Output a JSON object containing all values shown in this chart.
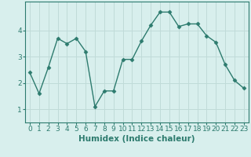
{
  "xlabel": "Humidex (Indice chaleur)",
  "x_values": [
    0,
    1,
    2,
    3,
    4,
    5,
    6,
    7,
    8,
    9,
    10,
    11,
    12,
    13,
    14,
    15,
    16,
    17,
    18,
    19,
    20,
    21,
    22,
    23
  ],
  "y_values": [
    2.4,
    1.6,
    2.6,
    3.7,
    3.5,
    3.7,
    3.2,
    1.1,
    1.7,
    1.7,
    2.9,
    2.9,
    3.6,
    4.2,
    4.7,
    4.7,
    4.15,
    4.25,
    4.25,
    3.8,
    3.55,
    2.7,
    2.1,
    1.8
  ],
  "line_color": "#2d7b6e",
  "marker": "D",
  "marker_size": 2.5,
  "bg_color": "#d8efed",
  "grid_color": "#c0dbd8",
  "ylim": [
    0.5,
    5.1
  ],
  "xlim": [
    -0.5,
    23.5
  ],
  "yticks": [
    1,
    2,
    3,
    4
  ],
  "xticks": [
    0,
    1,
    2,
    3,
    4,
    5,
    6,
    7,
    8,
    9,
    10,
    11,
    12,
    13,
    14,
    15,
    16,
    17,
    18,
    19,
    20,
    21,
    22,
    23
  ],
  "tick_label_fontsize": 6.5,
  "xlabel_fontsize": 7.5
}
